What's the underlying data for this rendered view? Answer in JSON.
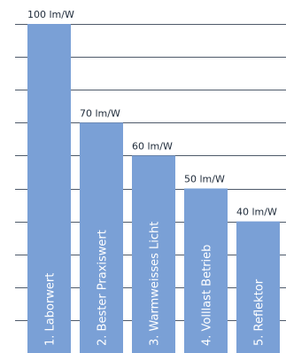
{
  "chart_data": {
    "type": "bar",
    "categories": [
      "1. Laborwert",
      "2. Bester Praxiswert",
      "3. Warmweisses Licht",
      "4. Volllast Betrieb",
      "5. Reflektor"
    ],
    "values": [
      100,
      70,
      60,
      50,
      40
    ],
    "value_labels": [
      "100 lm/W",
      "70 lm/W",
      "60 lm/W",
      "50 lm/W",
      "40 lm/W"
    ],
    "title": "",
    "xlabel": "",
    "ylabel": "",
    "ylim": [
      0,
      100
    ],
    "grid": true,
    "legend": "none",
    "bar_color": "#7aa0d6",
    "grid_color": "#4e5a6a",
    "label_color": "#ffffff",
    "value_label_color": "#1f2b3a"
  }
}
